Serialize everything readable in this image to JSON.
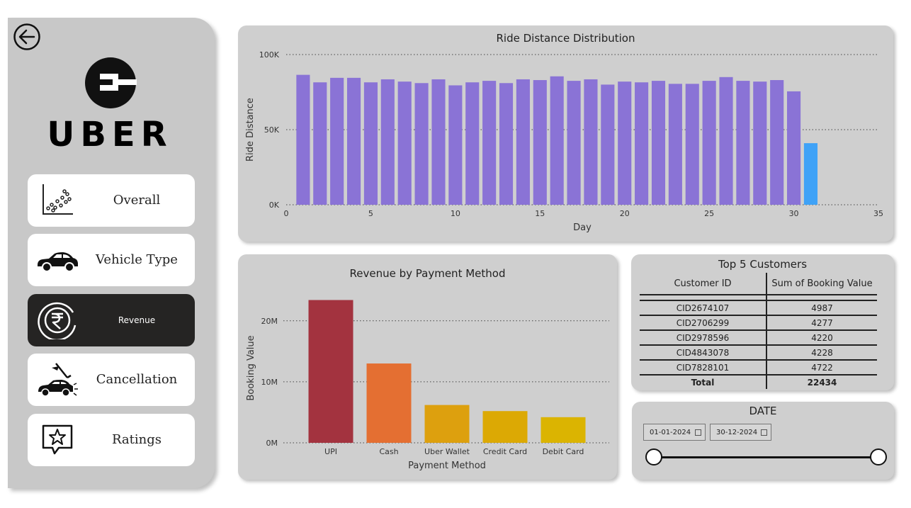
{
  "sidebar": {
    "logo_text": "UBER",
    "nav": [
      {
        "label": "Overall",
        "icon": "scatter-chart-icon"
      },
      {
        "label": "Vehicle Type",
        "icon": "car-icon"
      },
      {
        "label": "Revenue",
        "icon": "rupee-icon",
        "active": true
      },
      {
        "label": "Cancellation",
        "icon": "car-crash-icon"
      },
      {
        "label": "Ratings",
        "icon": "star-message-icon"
      }
    ]
  },
  "distance_chart": {
    "title": "Ride Distance Distribution",
    "chart_data": {
      "type": "bar",
      "title": "Ride Distance Distribution",
      "xlabel": "Day",
      "ylabel": "Ride Distance",
      "x": [
        1,
        2,
        3,
        4,
        5,
        6,
        7,
        8,
        9,
        10,
        11,
        12,
        13,
        14,
        15,
        16,
        17,
        18,
        19,
        20,
        21,
        22,
        23,
        24,
        25,
        26,
        27,
        28,
        29,
        30,
        31
      ],
      "values": [
        86500,
        81500,
        84500,
        84500,
        81500,
        83500,
        82000,
        81000,
        83500,
        79500,
        81500,
        82500,
        81000,
        83500,
        83000,
        85500,
        82500,
        83500,
        80000,
        82000,
        81500,
        82500,
        80500,
        80500,
        82500,
        85000,
        82500,
        82000,
        83000,
        75500,
        41000
      ],
      "xticks": [
        "0",
        "5",
        "10",
        "15",
        "20",
        "25",
        "30",
        "35"
      ],
      "yticks": [
        "0K",
        "50K",
        "100K"
      ],
      "xlim": [
        0,
        35
      ],
      "ylim": [
        0,
        100000
      ],
      "grid": true,
      "colors": {
        "main": "#8a73d6",
        "highlight": "#3fa2f7"
      }
    }
  },
  "revenue_chart": {
    "title": "Revenue by Payment Method",
    "chart_data": {
      "type": "bar",
      "title": "Revenue by Payment Method",
      "xlabel": "Payment Method",
      "ylabel": "Booking Value",
      "categories": [
        "UPI",
        "Cash",
        "Uber Wallet",
        "Credit Card",
        "Debit Card"
      ],
      "values": [
        23400000,
        13000000,
        6200000,
        5200000,
        4200000
      ],
      "yticks": [
        "0M",
        "10M",
        "20M"
      ],
      "ylim": [
        0,
        24500000
      ],
      "grid": true,
      "colors": [
        "#a3333f",
        "#e46f32",
        "#dda00e",
        "#dca904",
        "#dbb401"
      ]
    }
  },
  "top_customers": {
    "title": "Top 5 Customers",
    "col_id": "Customer ID",
    "col_sum": "Sum of Booking Value",
    "rows": [
      {
        "id": "CID2674107",
        "value": "4987"
      },
      {
        "id": "CID2706299",
        "value": "4277"
      },
      {
        "id": "CID2978596",
        "value": "4220"
      },
      {
        "id": "CID4843078",
        "value": "4228"
      },
      {
        "id": "CID7828101",
        "value": "4722"
      }
    ],
    "total_label": "Total",
    "total_value": "22434"
  },
  "date_filter": {
    "title": "DATE",
    "start": "01-01-2024",
    "end": "30-12-2024"
  }
}
